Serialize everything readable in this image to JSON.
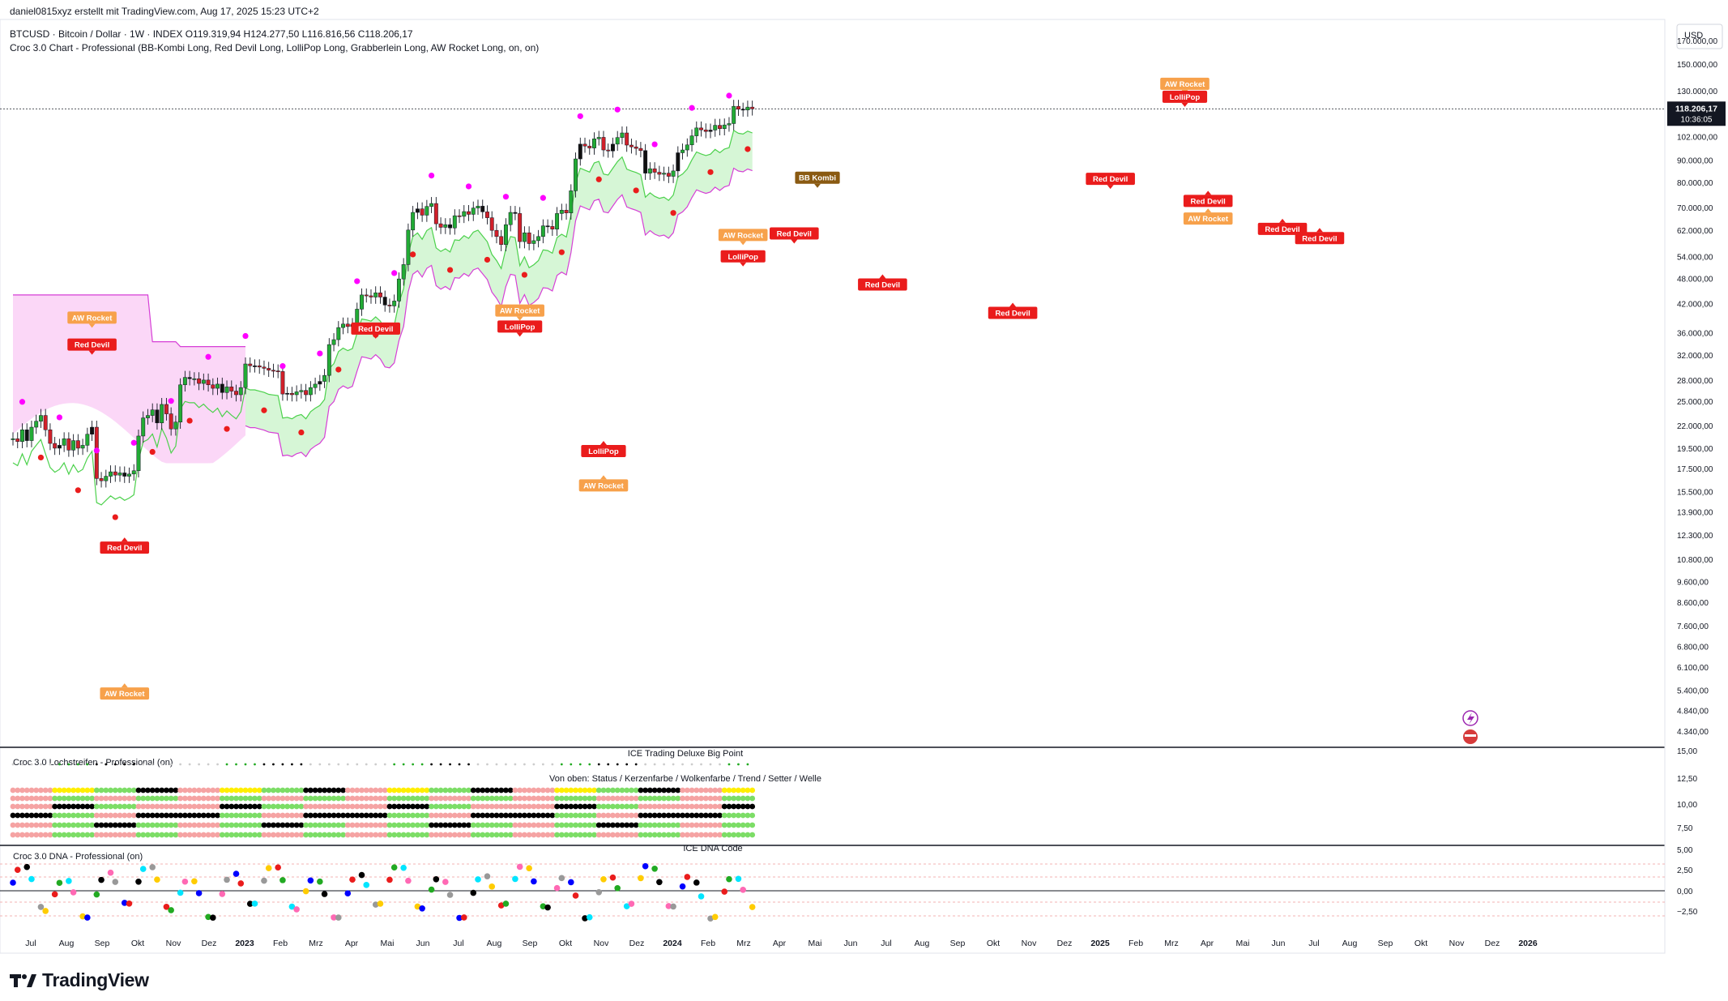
{
  "header": {
    "credit": "daniel0815xyz erstellt mit TradingView.com, Aug 17, 2025 15:23 UTC+2",
    "symbol_line": "BTCUSD · Bitcoin / Dollar · 1W · INDEX  O119.319,94  H124.277,50  L116.816,56  C118.206,17",
    "indicator_line": "Croc 3.0 Chart - Professional (BB-Kombi Long, Red Devil Long, LolliPop Long, Grabberlein Long, AW Rocket Long, on, on)"
  },
  "brand": "TradingView",
  "currency": "USD",
  "price_tag": {
    "value": "118.206,17",
    "countdown": "10:36:05"
  },
  "colors": {
    "up": "#22ab35",
    "down": "#d1202a",
    "neutral": "#101010",
    "cloud_green": "#d6f6d6",
    "cloud_pink": "#fbd7f7",
    "line_green": "#4cd14c",
    "line_pink": "#d63fd6",
    "sig_red": "#ea1c1c",
    "sig_orange": "#f7a14b",
    "sig_brown": "#8a5a12"
  },
  "panes": {
    "lochstreifen_label": "Croc 3.0 Lochstreifen - Professional (on)",
    "big_point": "ICE Trading Deluxe Big Point",
    "von_oben": "Von oben: Status / Kerzenfarbe / Wolkenfarbe / Trend / Setter / Welle",
    "dna_label": "Croc 3.0 DNA - Professional (on)",
    "dna_code": "ICE DNA Code",
    "mid_axis": [
      "15,00",
      "12,50",
      "10,00",
      "7,50"
    ],
    "dna_axis": [
      "5,00",
      "2,50",
      "0,00",
      "−2,50"
    ]
  },
  "chart_data": {
    "type": "candlestick",
    "title": "BTCUSD · Bitcoin / Dollar · 1W · INDEX",
    "ylabel": "USD",
    "y_scale": "log",
    "ylim": [
      4000,
      190000
    ],
    "x_tick_labels": [
      "Jul",
      "Aug",
      "Sep",
      "Okt",
      "Nov",
      "Dez",
      "2023",
      "Feb",
      "Mrz",
      "Apr",
      "Mai",
      "Jun",
      "Jul",
      "Aug",
      "Sep",
      "Okt",
      "Nov",
      "Dez",
      "2024",
      "Feb",
      "Mrz",
      "Apr",
      "Mai",
      "Jun",
      "Jul",
      "Aug",
      "Sep",
      "Okt",
      "Nov",
      "Dez",
      "2025",
      "Feb",
      "Mrz",
      "Apr",
      "Mai",
      "Jun",
      "Jul",
      "Aug",
      "Sep",
      "Okt",
      "Nov",
      "Dez",
      "2026"
    ],
    "y_tick_labels": [
      "170.000,00",
      "150.000,00",
      "130.000,00",
      "102.000,00",
      "90.000,00",
      "80.000,00",
      "70.000,00",
      "62.000,00",
      "54.000,00",
      "48.000,00",
      "42.000,00",
      "36.000,00",
      "32.000,00",
      "28.000,00",
      "25.000,00",
      "22.000,00",
      "19.500,00",
      "17.500,00",
      "15.500,00",
      "13.900,00",
      "12.300,00",
      "10.800,00",
      "9.600,00",
      "8.600,00",
      "7.600,00",
      "6.800,00",
      "6.100,00",
      "5.400,00",
      "4.840,00",
      "4.340,00"
    ],
    "last_close": 118206.17,
    "ohlc": {
      "open": 119319.94,
      "high": 124277.5,
      "low": 116816.56,
      "close": 118206.17
    },
    "weekly_close_approx": [
      20500,
      20200,
      21500,
      20300,
      21800,
      22500,
      23200,
      21500,
      20000,
      19500,
      19800,
      20500,
      19300,
      20300,
      19500,
      19800,
      21000,
      21800,
      16600,
      16400,
      16800,
      17200,
      16900,
      17100,
      16800,
      17000,
      17300,
      20800,
      22900,
      23200,
      23900,
      22300,
      24600,
      23400,
      21600,
      22400,
      27300,
      28400,
      28200,
      28200,
      27500,
      28000,
      27300,
      26800,
      27400,
      26200,
      27000,
      26400,
      25900,
      26900,
      30500,
      30200,
      30200,
      30000,
      29800,
      29500,
      29400,
      29300,
      26000,
      26100,
      25900,
      26300,
      26500,
      25900,
      26900,
      27400,
      27800,
      28700,
      33800,
      34700,
      37000,
      37700,
      37200,
      37600,
      40800,
      44000,
      43800,
      43500,
      44500,
      43500,
      41700,
      41500,
      42600,
      47900,
      51700,
      62100,
      68200,
      69500,
      67200,
      70400,
      71500,
      64200,
      63000,
      63900,
      62800,
      67000,
      66800,
      68500,
      67500,
      69800,
      70500,
      68400,
      66300,
      62000,
      60000,
      57500,
      63900,
      68200,
      67800,
      58400,
      61200,
      57800,
      58700,
      60000,
      63500,
      63300,
      62400,
      67800,
      69000,
      68000,
      76500,
      90600,
      98000,
      97000,
      96000,
      100800,
      101600,
      95000,
      94500,
      98000,
      101500,
      104000,
      97500,
      96600,
      95800,
      94700,
      84000,
      86000,
      84400,
      83500,
      84000,
      82600,
      85000,
      93600,
      95000,
      97600,
      102400,
      106800,
      105700,
      104800,
      105600,
      108300,
      106400,
      108500,
      109300,
      119800,
      118000,
      117500,
      119300,
      118200
    ],
    "cloud": {
      "green_upper_start": 30000,
      "green_lower_start": 20000,
      "pink_upper": 44000,
      "pink_lower": 21000
    },
    "signal_labels": [
      {
        "text": "AW Rocket",
        "kind": "orange",
        "week": 17,
        "price": 39000,
        "pos": "above"
      },
      {
        "text": "Red Devil",
        "kind": "red",
        "week": 17,
        "price": 33800,
        "pos": "above"
      },
      {
        "text": "Red Devil",
        "kind": "red",
        "week": 24,
        "price": 11500,
        "pos": "below"
      },
      {
        "text": "AW Rocket",
        "kind": "orange",
        "week": 24,
        "price": 5300,
        "pos": "below"
      },
      {
        "text": "Red Devil",
        "kind": "red",
        "week": 78,
        "price": 36800,
        "pos": "above"
      },
      {
        "text": "AW Rocket",
        "kind": "orange",
        "week": 109,
        "price": 40500,
        "pos": "above"
      },
      {
        "text": "LolliPop",
        "kind": "red",
        "week": 109,
        "price": 37200,
        "pos": "above"
      },
      {
        "text": "LolliPop",
        "kind": "red",
        "week": 127,
        "price": 19200,
        "pos": "below"
      },
      {
        "text": "AW Rocket",
        "kind": "orange",
        "week": 127,
        "price": 16000,
        "pos": "below"
      },
      {
        "text": "AW Rocket",
        "kind": "orange",
        "week": 157,
        "price": 60500,
        "pos": "above"
      },
      {
        "text": "LolliPop",
        "kind": "red",
        "week": 157,
        "price": 54000,
        "pos": "above"
      },
      {
        "text": "Red Devil",
        "kind": "red",
        "week": 168,
        "price": 61000,
        "pos": "above"
      },
      {
        "text": "BB Kombi",
        "kind": "brown",
        "week": 173,
        "price": 82000,
        "pos": "above"
      },
      {
        "text": "Red Devil",
        "kind": "red",
        "week": 187,
        "price": 46500,
        "pos": "below"
      },
      {
        "text": "Red Devil",
        "kind": "red",
        "week": 215,
        "price": 40000,
        "pos": "below"
      },
      {
        "text": "Red Devil",
        "kind": "red",
        "week": 236,
        "price": 81500,
        "pos": "above"
      },
      {
        "text": "AW Rocket",
        "kind": "orange",
        "week": 252,
        "price": 135000,
        "pos": "above"
      },
      {
        "text": "LolliPop",
        "kind": "red",
        "week": 252,
        "price": 126000,
        "pos": "above"
      },
      {
        "text": "Red Devil",
        "kind": "red",
        "week": 257,
        "price": 72500,
        "pos": "below"
      },
      {
        "text": "AW Rocket",
        "kind": "orange",
        "week": 257,
        "price": 66000,
        "pos": "below"
      },
      {
        "text": "Red Devil",
        "kind": "red",
        "week": 273,
        "price": 62500,
        "pos": "below"
      },
      {
        "text": "Red Devil",
        "kind": "red",
        "week": 281,
        "price": 59500,
        "pos": "below"
      }
    ]
  }
}
